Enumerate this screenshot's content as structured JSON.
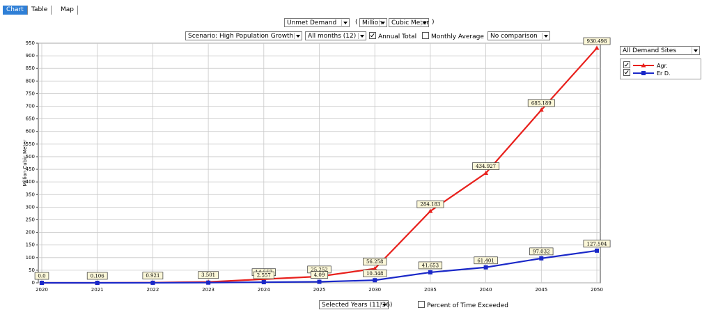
{
  "tabs": [
    "Chart",
    "Table",
    "Map"
  ],
  "controls": {
    "measure": "Unmet Demand",
    "paren_open": "(",
    "unit_scale": "Million",
    "unit": "Cubic Meter",
    "paren_close": ")",
    "scenario": "Scenario: High Population Growth",
    "months": "All months (12)",
    "annual_total": {
      "label": "Annual Total",
      "checked": true
    },
    "monthly_average": {
      "label": "Monthly Average",
      "checked": false
    },
    "comparison": "No comparison",
    "sites": "All Demand Sites",
    "years": "Selected Years (11/36)",
    "percent_exceeded": {
      "label": "Percent of Time Exceeded",
      "checked": false
    }
  },
  "chart_data": {
    "type": "line",
    "y_label": "Million Cubic Meter",
    "categories": [
      "2020",
      "2021",
      "2022",
      "2023",
      "2024",
      "2025",
      "2030",
      "2035",
      "2040",
      "2045",
      "2050"
    ],
    "series": [
      {
        "name": "Agr.",
        "color": "#e8201c",
        "marker": "triangle",
        "checked": true,
        "values": [
          0,
          0.106,
          0.921,
          3.501,
          14.557,
          25.252,
          56.258,
          284.183,
          434.927,
          685.189,
          930.498
        ],
        "value_labels": [
          "0.0",
          "0.106",
          "0.921",
          "3.501",
          "14.557",
          "25.252",
          "56.258",
          "284.183",
          "434.927",
          "685.189",
          "930.498"
        ]
      },
      {
        "name": "Er D.",
        "color": "#1a28c8",
        "marker": "square",
        "checked": true,
        "values": [
          0,
          0,
          0.2,
          0.8,
          2.557,
          4.09,
          10.348,
          41.653,
          61.401,
          97.032,
          127.504
        ],
        "value_labels": [
          null,
          null,
          null,
          null,
          "2.557",
          "4.09",
          "10.348",
          "41.653",
          "61.401",
          "97.032",
          "127.504"
        ]
      }
    ],
    "ylim": [
      0,
      950
    ],
    "yticks": [
      0,
      50,
      100,
      150,
      200,
      250,
      300,
      350,
      400,
      450,
      500,
      550,
      600,
      650,
      700,
      750,
      800,
      850,
      900,
      950
    ],
    "grid": true
  }
}
